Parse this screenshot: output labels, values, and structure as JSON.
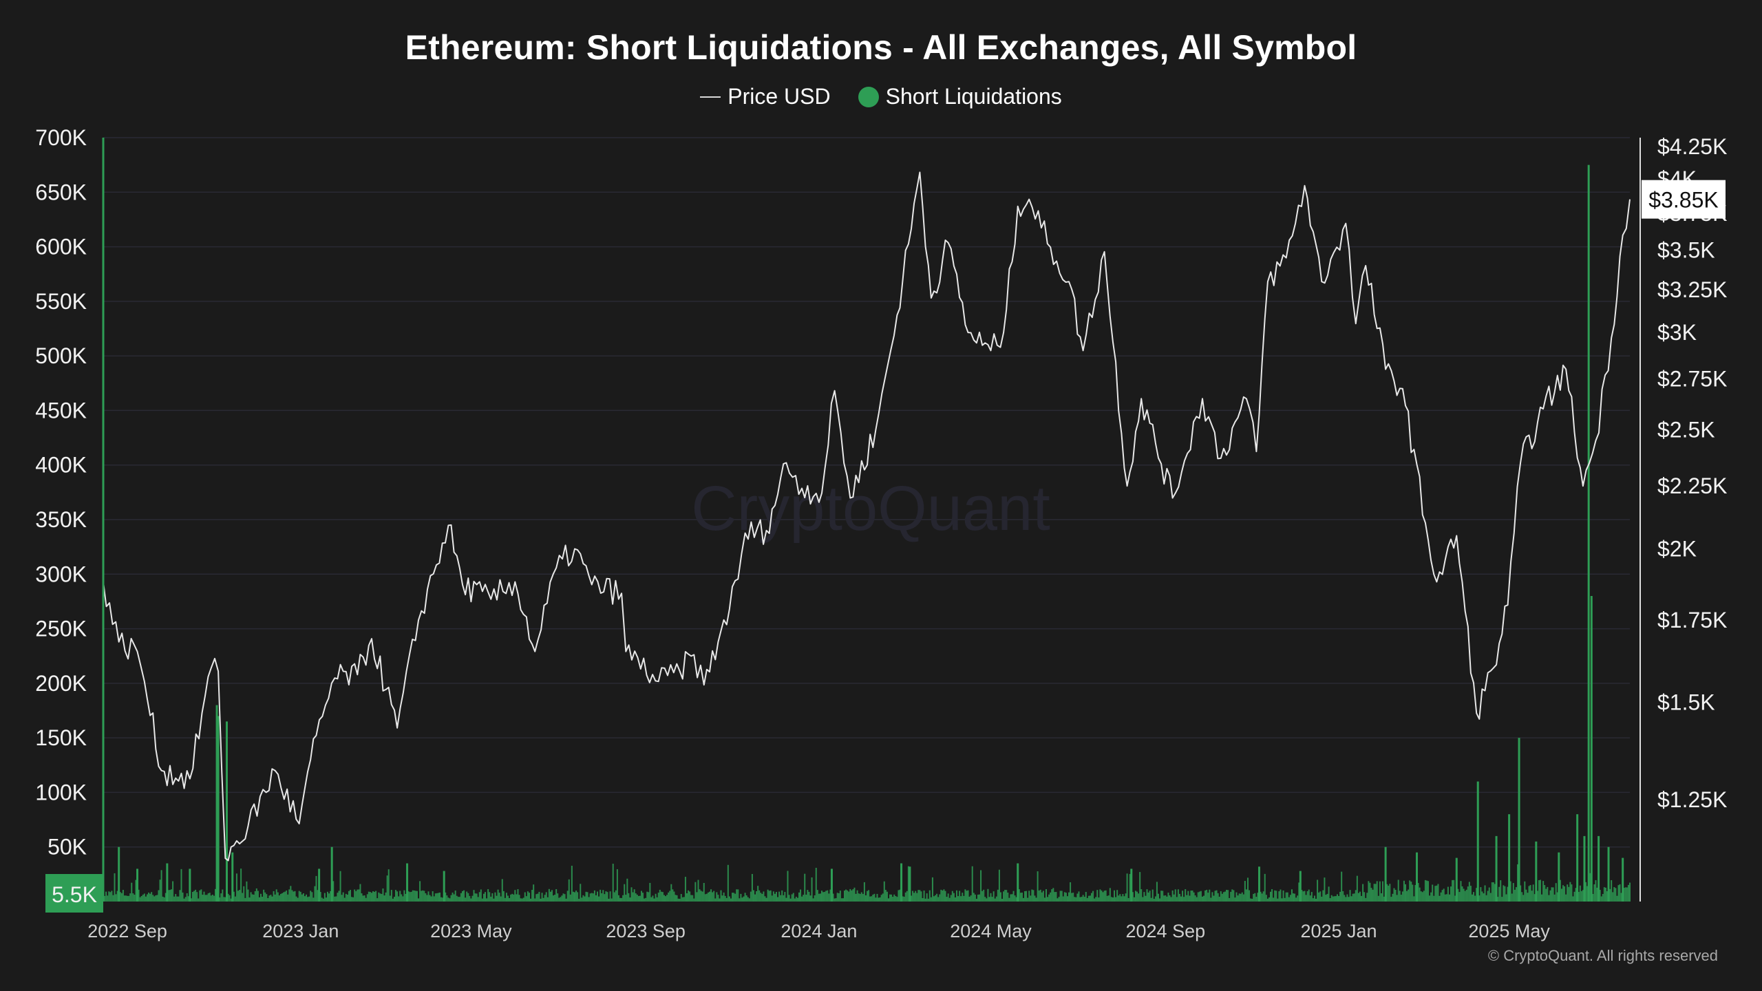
{
  "title": "Ethereum: Short Liquidations - All Exchanges, All Symbol",
  "watermark": "CryptoQuant",
  "credit": "© CryptoQuant. All rights reserved",
  "legend": [
    {
      "label": "Price USD",
      "marker": "line",
      "color": "#d9d9d9"
    },
    {
      "label": "Short Liquidations",
      "marker": "dot",
      "color": "#2e9e55"
    }
  ],
  "chart_data": {
    "type": "line+bar",
    "title": "Ethereum: Short Liquidations - All Exchanges, All Symbol",
    "x_ticks": [
      "2022 Sep",
      "2023 Jan",
      "2023 May",
      "2023 Sep",
      "2024 Jan",
      "2024 May",
      "2024 Sep",
      "2025 Jan",
      "2025 May"
    ],
    "x_range": [
      "2022-08-15",
      "2025-07-25"
    ],
    "left_axis": {
      "series": "Short Liquidations",
      "ticks": [
        "700K",
        "650K",
        "600K",
        "550K",
        "500K",
        "450K",
        "400K",
        "350K",
        "300K",
        "250K",
        "200K",
        "150K",
        "100K",
        "50K"
      ],
      "range": [
        0,
        700000
      ],
      "current_label": "5.5K"
    },
    "right_axis": {
      "series": "Price USD",
      "scale": "log",
      "ticks": [
        "$4.25K",
        "$4K",
        "$3.75K",
        "$3.5K",
        "$3.25K",
        "$3K",
        "$2.75K",
        "$2.5K",
        "$2.25K",
        "$2K",
        "$1.75K",
        "$1.5K",
        "$1.25K"
      ],
      "current_label": "$3.85K"
    },
    "series": [
      {
        "name": "Price USD",
        "color": "#e6e6e6",
        "points": [
          [
            "2022-08-15",
            1880
          ],
          [
            "2022-08-26",
            1680
          ],
          [
            "2022-09-08",
            1650
          ],
          [
            "2022-09-13",
            1560
          ],
          [
            "2022-09-25",
            1320
          ],
          [
            "2022-10-15",
            1300
          ],
          [
            "2022-10-30",
            1600
          ],
          [
            "2022-11-04",
            1590
          ],
          [
            "2022-11-09",
            1120
          ],
          [
            "2022-11-25",
            1190
          ],
          [
            "2022-12-14",
            1320
          ],
          [
            "2022-12-31",
            1195
          ],
          [
            "2023-01-12",
            1410
          ],
          [
            "2023-01-25",
            1570
          ],
          [
            "2023-02-10",
            1580
          ],
          [
            "2023-02-20",
            1690
          ],
          [
            "2023-03-10",
            1430
          ],
          [
            "2023-03-25",
            1750
          ],
          [
            "2023-04-15",
            2090
          ],
          [
            "2023-04-25",
            1870
          ],
          [
            "2023-05-15",
            1820
          ],
          [
            "2023-06-01",
            1880
          ],
          [
            "2023-06-15",
            1650
          ],
          [
            "2023-06-30",
            1930
          ],
          [
            "2023-07-13",
            2000
          ],
          [
            "2023-07-25",
            1870
          ],
          [
            "2023-08-15",
            1840
          ],
          [
            "2023-08-18",
            1650
          ],
          [
            "2023-09-10",
            1560
          ],
          [
            "2023-09-25",
            1590
          ],
          [
            "2023-10-05",
            1640
          ],
          [
            "2023-10-12",
            1550
          ],
          [
            "2023-10-22",
            1680
          ],
          [
            "2023-11-05",
            1890
          ],
          [
            "2023-11-10",
            2060
          ],
          [
            "2023-11-25",
            2070
          ],
          [
            "2023-12-09",
            2350
          ],
          [
            "2023-12-20",
            2240
          ],
          [
            "2024-01-03",
            2220
          ],
          [
            "2024-01-12",
            2690
          ],
          [
            "2024-01-23",
            2200
          ],
          [
            "2024-02-10",
            2500
          ],
          [
            "2024-02-25",
            3100
          ],
          [
            "2024-03-12",
            4050
          ],
          [
            "2024-03-20",
            3200
          ],
          [
            "2024-04-01",
            3550
          ],
          [
            "2024-04-15",
            3000
          ],
          [
            "2024-05-01",
            2900
          ],
          [
            "2024-05-10",
            3000
          ],
          [
            "2024-05-20",
            3800
          ],
          [
            "2024-05-28",
            3850
          ],
          [
            "2024-06-12",
            3520
          ],
          [
            "2024-06-25",
            3300
          ],
          [
            "2024-07-05",
            2900
          ],
          [
            "2024-07-20",
            3490
          ],
          [
            "2024-08-05",
            2250
          ],
          [
            "2024-08-15",
            2650
          ],
          [
            "2024-09-06",
            2200
          ],
          [
            "2024-09-27",
            2650
          ],
          [
            "2024-10-10",
            2370
          ],
          [
            "2024-10-28",
            2650
          ],
          [
            "2024-11-04",
            2400
          ],
          [
            "2024-11-12",
            3300
          ],
          [
            "2024-11-25",
            3450
          ],
          [
            "2024-12-08",
            3950
          ],
          [
            "2024-12-20",
            3300
          ],
          [
            "2025-01-06",
            3680
          ],
          [
            "2025-01-13",
            3050
          ],
          [
            "2025-01-20",
            3400
          ],
          [
            "2025-02-03",
            2800
          ],
          [
            "2025-02-15",
            2700
          ],
          [
            "2025-03-03",
            2100
          ],
          [
            "2025-03-11",
            1880
          ],
          [
            "2025-03-25",
            2050
          ],
          [
            "2025-04-08",
            1470
          ],
          [
            "2025-04-20",
            1600
          ],
          [
            "2025-04-30",
            1800
          ],
          [
            "2025-05-09",
            2350
          ],
          [
            "2025-05-25",
            2600
          ],
          [
            "2025-06-10",
            2800
          ],
          [
            "2025-06-22",
            2250
          ],
          [
            "2025-07-01",
            2450
          ],
          [
            "2025-07-12",
            2970
          ],
          [
            "2025-07-20",
            3600
          ],
          [
            "2025-07-25",
            3850
          ]
        ]
      },
      {
        "name": "Short Liquidations",
        "color": "#2e9e55",
        "spikes": [
          [
            "2022-08-26",
            50000
          ],
          [
            "2022-09-08",
            30000
          ],
          [
            "2022-09-29",
            35000
          ],
          [
            "2022-10-15",
            30000
          ],
          [
            "2022-11-03",
            180000
          ],
          [
            "2022-11-04",
            170000
          ],
          [
            "2022-11-10",
            165000
          ],
          [
            "2022-11-14",
            45000
          ],
          [
            "2023-01-14",
            30000
          ],
          [
            "2023-01-23",
            50000
          ],
          [
            "2023-03-17",
            35000
          ],
          [
            "2023-04-12",
            28000
          ],
          [
            "2024-01-10",
            30000
          ],
          [
            "2024-02-28",
            35000
          ],
          [
            "2024-03-05",
            32000
          ],
          [
            "2024-05-20",
            35000
          ],
          [
            "2024-08-08",
            30000
          ],
          [
            "2024-11-06",
            32000
          ],
          [
            "2024-12-05",
            28000
          ],
          [
            "2025-02-03",
            50000
          ],
          [
            "2025-02-25",
            45000
          ],
          [
            "2025-03-25",
            40000
          ],
          [
            "2025-04-09",
            110000
          ],
          [
            "2025-04-22",
            60000
          ],
          [
            "2025-05-01",
            80000
          ],
          [
            "2025-05-08",
            150000
          ],
          [
            "2025-05-20",
            55000
          ],
          [
            "2025-06-05",
            45000
          ],
          [
            "2025-06-18",
            80000
          ],
          [
            "2025-06-23",
            60000
          ],
          [
            "2025-06-26",
            675000
          ],
          [
            "2025-06-28",
            280000
          ],
          [
            "2025-07-03",
            60000
          ],
          [
            "2025-07-10",
            50000
          ],
          [
            "2025-07-20",
            40000
          ]
        ]
      }
    ]
  }
}
